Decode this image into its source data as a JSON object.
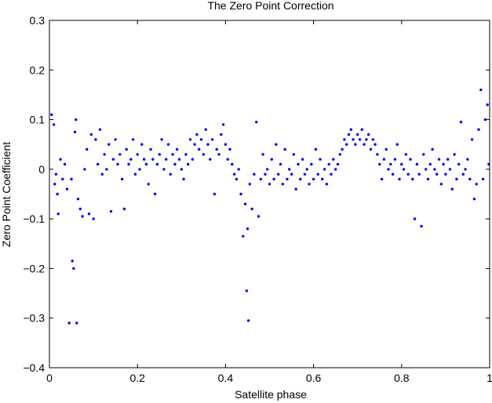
{
  "chart_data": {
    "type": "scatter",
    "title": "The Zero Point Correction",
    "xlabel": "Satellite phase",
    "ylabel": "Zero Point Coefficient",
    "xlim": [
      0,
      1
    ],
    "ylim": [
      -0.4,
      0.3
    ],
    "xticks": [
      0,
      0.2,
      0.4,
      0.6,
      0.8,
      1
    ],
    "xtick_labels": [
      "0",
      "0.2",
      "0.4",
      "0.6",
      "0.8",
      "1"
    ],
    "yticks": [
      -0.4,
      -0.3,
      -0.2,
      -0.1,
      0,
      0.1,
      0.2,
      0.3
    ],
    "ytick_labels": [
      "−0.4",
      "−0.3",
      "−0.2",
      "−0.1",
      "0",
      "0.1",
      "0.2",
      "0.3"
    ],
    "grid": false,
    "marker_color": "#0000ff",
    "series": [
      {
        "points": [
          [
            0.005,
            0.11
          ],
          [
            0.01,
            0.09
          ],
          [
            0.012,
            -0.03
          ],
          [
            0.015,
            -0.01
          ],
          [
            0.018,
            -0.05
          ],
          [
            0.02,
            -0.09
          ],
          [
            0.025,
            0.02
          ],
          [
            0.03,
            -0.02
          ],
          [
            0.035,
            0.01
          ],
          [
            0.04,
            -0.04
          ],
          [
            0.045,
            -0.31
          ],
          [
            0.05,
            -0.02
          ],
          [
            0.052,
            -0.185
          ],
          [
            0.055,
            -0.2
          ],
          [
            0.058,
            0.075
          ],
          [
            0.06,
            0.1
          ],
          [
            0.062,
            -0.31
          ],
          [
            0.065,
            -0.06
          ],
          [
            0.07,
            -0.08
          ],
          [
            0.075,
            -0.095
          ],
          [
            0.08,
            0.0
          ],
          [
            0.085,
            0.04
          ],
          [
            0.09,
            -0.09
          ],
          [
            0.095,
            0.07
          ],
          [
            0.1,
            -0.1
          ],
          [
            0.105,
            0.06
          ],
          [
            0.11,
            0.01
          ],
          [
            0.115,
            0.08
          ],
          [
            0.12,
            -0.01
          ],
          [
            0.125,
            0.03
          ],
          [
            0.13,
            0.0
          ],
          [
            0.135,
            0.05
          ],
          [
            0.14,
            -0.085
          ],
          [
            0.145,
            0.02
          ],
          [
            0.15,
            0.06
          ],
          [
            0.155,
            0.01
          ],
          [
            0.16,
            0.03
          ],
          [
            0.165,
            -0.02
          ],
          [
            0.17,
            -0.08
          ],
          [
            0.175,
            0.04
          ],
          [
            0.18,
            0.01
          ],
          [
            0.185,
            0.02
          ],
          [
            0.19,
            0.06
          ],
          [
            0.195,
            -0.01
          ],
          [
            0.2,
            0.03
          ],
          [
            0.205,
            0.0
          ],
          [
            0.21,
            0.05
          ],
          [
            0.215,
            0.02
          ],
          [
            0.22,
            0.01
          ],
          [
            0.225,
            -0.03
          ],
          [
            0.23,
            0.04
          ],
          [
            0.235,
            0.02
          ],
          [
            0.24,
            -0.05
          ],
          [
            0.245,
            0.01
          ],
          [
            0.25,
            0.03
          ],
          [
            0.255,
            0.06
          ],
          [
            0.26,
            0.0
          ],
          [
            0.265,
            0.02
          ],
          [
            0.27,
            0.05
          ],
          [
            0.275,
            -0.01
          ],
          [
            0.28,
            0.03
          ],
          [
            0.285,
            0.01
          ],
          [
            0.29,
            0.04
          ],
          [
            0.295,
            0.02
          ],
          [
            0.3,
            0.0
          ],
          [
            0.305,
            -0.02
          ],
          [
            0.31,
            0.03
          ],
          [
            0.315,
            0.01
          ],
          [
            0.32,
            0.06
          ],
          [
            0.325,
            0.02
          ],
          [
            0.33,
            0.05
          ],
          [
            0.335,
            0.07
          ],
          [
            0.34,
            0.04
          ],
          [
            0.345,
            0.06
          ],
          [
            0.35,
            0.03
          ],
          [
            0.355,
            0.08
          ],
          [
            0.36,
            0.05
          ],
          [
            0.365,
            0.02
          ],
          [
            0.37,
            0.06
          ],
          [
            0.375,
            -0.05
          ],
          [
            0.38,
            0.04
          ],
          [
            0.385,
            0.03
          ],
          [
            0.39,
            0.07
          ],
          [
            0.395,
            0.09
          ],
          [
            0.4,
            0.05
          ],
          [
            0.405,
            0.02
          ],
          [
            0.41,
            0.04
          ],
          [
            0.415,
            0.01
          ],
          [
            0.42,
            -0.01
          ],
          [
            0.425,
            -0.02
          ],
          [
            0.43,
            0.0
          ],
          [
            0.435,
            -0.05
          ],
          [
            0.44,
            -0.135
          ],
          [
            0.445,
            -0.07
          ],
          [
            0.448,
            -0.245
          ],
          [
            0.45,
            -0.12
          ],
          [
            0.452,
            -0.305
          ],
          [
            0.455,
            -0.03
          ],
          [
            0.46,
            -0.08
          ],
          [
            0.465,
            -0.01
          ],
          [
            0.47,
            0.095
          ],
          [
            0.475,
            -0.095
          ],
          [
            0.48,
            -0.02
          ],
          [
            0.485,
            0.03
          ],
          [
            0.49,
            -0.01
          ],
          [
            0.495,
            0.0
          ],
          [
            0.5,
            -0.03
          ],
          [
            0.505,
            0.02
          ],
          [
            0.51,
            -0.02
          ],
          [
            0.515,
            0.05
          ],
          [
            0.52,
            -0.01
          ],
          [
            0.525,
            0.01
          ],
          [
            0.53,
            -0.03
          ],
          [
            0.535,
            0.04
          ],
          [
            0.54,
            -0.02
          ],
          [
            0.545,
            0.0
          ],
          [
            0.55,
            -0.01
          ],
          [
            0.555,
            0.03
          ],
          [
            0.56,
            -0.04
          ],
          [
            0.565,
            0.01
          ],
          [
            0.57,
            -0.02
          ],
          [
            0.575,
            0.02
          ],
          [
            0.58,
            -0.01
          ],
          [
            0.585,
            0.0
          ],
          [
            0.59,
            -0.03
          ],
          [
            0.595,
            0.01
          ],
          [
            0.6,
            -0.02
          ],
          [
            0.605,
            0.04
          ],
          [
            0.61,
            -0.01
          ],
          [
            0.615,
            0.02
          ],
          [
            0.62,
            -0.02
          ],
          [
            0.625,
            0.0
          ],
          [
            0.63,
            -0.03
          ],
          [
            0.635,
            0.01
          ],
          [
            0.64,
            -0.01
          ],
          [
            0.645,
            0.02
          ],
          [
            0.65,
            0.0
          ],
          [
            0.655,
            0.01
          ],
          [
            0.66,
            0.03
          ],
          [
            0.665,
            0.04
          ],
          [
            0.67,
            0.06
          ],
          [
            0.675,
            0.05
          ],
          [
            0.68,
            0.07
          ],
          [
            0.685,
            0.08
          ],
          [
            0.69,
            0.06
          ],
          [
            0.695,
            0.05
          ],
          [
            0.7,
            0.07
          ],
          [
            0.705,
            0.06
          ],
          [
            0.71,
            0.08
          ],
          [
            0.715,
            0.05
          ],
          [
            0.72,
            0.06
          ],
          [
            0.725,
            0.07
          ],
          [
            0.73,
            0.04
          ],
          [
            0.735,
            0.06
          ],
          [
            0.74,
            0.05
          ],
          [
            0.745,
            0.03
          ],
          [
            0.75,
            0.01
          ],
          [
            0.755,
            -0.02
          ],
          [
            0.76,
            0.02
          ],
          [
            0.765,
            0.04
          ],
          [
            0.77,
            0.0
          ],
          [
            0.775,
            0.01
          ],
          [
            0.78,
            -0.01
          ],
          [
            0.785,
            0.02
          ],
          [
            0.79,
            0.05
          ],
          [
            0.795,
            -0.02
          ],
          [
            0.8,
            0.01
          ],
          [
            0.805,
            0.0
          ],
          [
            0.81,
            0.03
          ],
          [
            0.815,
            -0.01
          ],
          [
            0.82,
            0.02
          ],
          [
            0.825,
            -0.02
          ],
          [
            0.83,
            -0.1
          ],
          [
            0.835,
            0.01
          ],
          [
            0.84,
            -0.01
          ],
          [
            0.845,
            -0.115
          ],
          [
            0.85,
            0.03
          ],
          [
            0.855,
            0.0
          ],
          [
            0.86,
            -0.02
          ],
          [
            0.865,
            0.01
          ],
          [
            0.87,
            0.04
          ],
          [
            0.875,
            0.0
          ],
          [
            0.88,
            -0.01
          ],
          [
            0.885,
            0.02
          ],
          [
            0.89,
            -0.03
          ],
          [
            0.895,
            0.01
          ],
          [
            0.9,
            -0.01
          ],
          [
            0.905,
            0.02
          ],
          [
            0.91,
            0.0
          ],
          [
            0.915,
            -0.04
          ],
          [
            0.92,
            0.03
          ],
          [
            0.925,
            -0.02
          ],
          [
            0.93,
            0.01
          ],
          [
            0.935,
            0.095
          ],
          [
            0.94,
            -0.01
          ],
          [
            0.945,
            0.0
          ],
          [
            0.95,
            0.02
          ],
          [
            0.955,
            -0.02
          ],
          [
            0.96,
            0.06
          ],
          [
            0.965,
            -0.06
          ],
          [
            0.97,
            -0.03
          ],
          [
            0.975,
            0.08
          ],
          [
            0.98,
            0.16
          ],
          [
            0.985,
            -0.02
          ],
          [
            0.99,
            0.1
          ],
          [
            0.995,
            0.13
          ],
          [
            0.998,
            0.01
          ]
        ]
      }
    ]
  }
}
